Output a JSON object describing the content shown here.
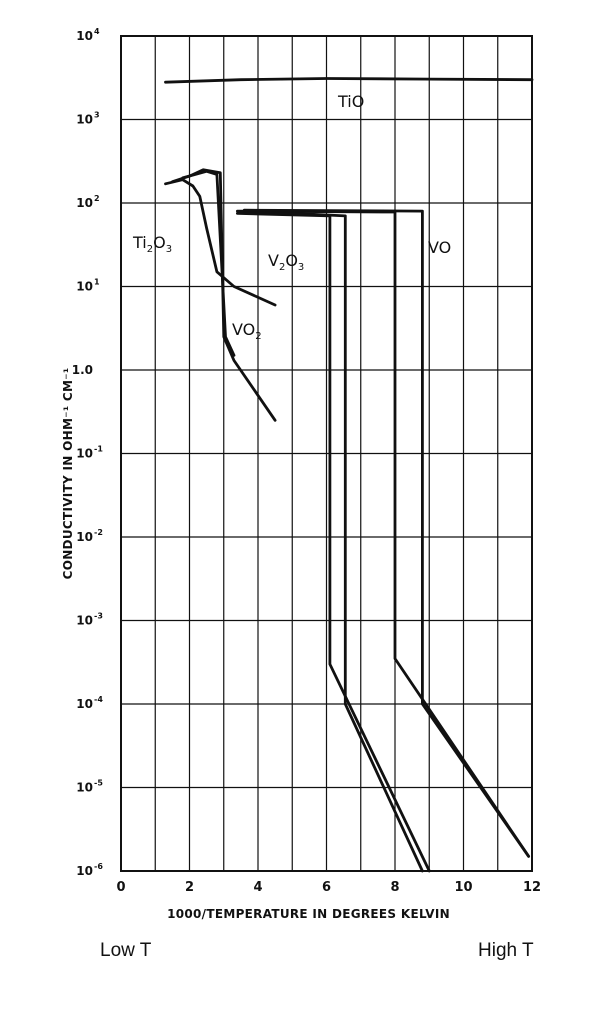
{
  "chart_data": {
    "type": "line",
    "xlabel": "1000/TEMPERATURE IN DEGREES KELVIN",
    "ylabel": "CONDUCTIVITY IN OHM⁻¹ CM⁻¹",
    "y_scale": "log",
    "xlim": [
      0,
      12
    ],
    "ylim": [
      1e-06,
      10000.0
    ],
    "grid": true,
    "x_ticks": [
      "0",
      "2",
      "4",
      "6",
      "8",
      "10",
      "12"
    ],
    "y_ticks": [
      {
        "base": "10",
        "exp": "4"
      },
      {
        "base": "10",
        "exp": "3"
      },
      {
        "base": "10",
        "exp": "2"
      },
      {
        "base": "10",
        "exp": "1"
      },
      {
        "base": "1.0",
        "exp": ""
      },
      {
        "base": "10",
        "exp": "-1"
      },
      {
        "base": "10",
        "exp": "-2"
      },
      {
        "base": "10",
        "exp": "-3"
      },
      {
        "base": "10",
        "exp": "-4"
      },
      {
        "base": "10",
        "exp": "-5"
      },
      {
        "base": "10",
        "exp": "-6"
      }
    ],
    "series": [
      {
        "name": "TiO",
        "label_main": "TiO",
        "label_parts": [
          {
            "t": "TiO",
            "sub": false
          }
        ],
        "points": [
          [
            1.3,
            2800
          ],
          [
            3.5,
            3000
          ],
          [
            6,
            3100
          ],
          [
            9,
            3050
          ],
          [
            12,
            3000
          ]
        ]
      },
      {
        "name": "Ti2O3",
        "label_parts": [
          {
            "t": "Ti",
            "sub": false
          },
          {
            "t": "2",
            "sub": true
          },
          {
            "t": "O",
            "sub": false
          },
          {
            "t": "3",
            "sub": true
          }
        ],
        "points": [
          [
            1.3,
            170
          ],
          [
            1.8,
            190
          ],
          [
            2.1,
            160
          ],
          [
            2.3,
            120
          ],
          [
            2.5,
            50
          ],
          [
            2.8,
            15
          ],
          [
            3.3,
            10
          ],
          [
            4.5,
            6
          ]
        ]
      },
      {
        "name": "VO2",
        "label_parts": [
          {
            "t": "VO",
            "sub": false
          },
          {
            "t": "2",
            "sub": true
          }
        ],
        "points": [
          [
            1.5,
            180
          ],
          [
            2.0,
            210
          ],
          [
            2.4,
            250
          ],
          [
            2.9,
            230
          ],
          [
            3.0,
            2.5
          ],
          [
            3.3,
            1.3
          ],
          [
            4.5,
            0.25
          ]
        ]
      },
      {
        "name": "VO2 (second curve)",
        "label_parts": [],
        "points": [
          [
            1.8,
            200
          ],
          [
            2.5,
            240
          ],
          [
            2.8,
            220
          ],
          [
            3.05,
            2.5
          ],
          [
            3.3,
            1.5
          ]
        ]
      },
      {
        "name": "V2O3",
        "label_parts": [
          {
            "t": "V",
            "sub": false
          },
          {
            "t": "2",
            "sub": true
          },
          {
            "t": "O",
            "sub": false
          },
          {
            "t": "3",
            "sub": true
          }
        ],
        "points": [
          [
            3.4,
            75
          ],
          [
            6.1,
            70
          ],
          [
            6.1,
            0.0003
          ],
          [
            9.0,
            1e-06
          ]
        ]
      },
      {
        "name": "V2O3 (second curve)",
        "label_parts": [],
        "points": [
          [
            3.6,
            80
          ],
          [
            6.55,
            70
          ],
          [
            6.55,
            0.0001
          ],
          [
            8.8,
            1e-06
          ]
        ]
      },
      {
        "name": "VO",
        "label_parts": [
          {
            "t": "VO",
            "sub": false
          }
        ],
        "points": [
          [
            3.4,
            80
          ],
          [
            8.0,
            78
          ],
          [
            8.0,
            0.00035
          ],
          [
            11.9,
            1.5e-06
          ]
        ]
      },
      {
        "name": "VO (second curve)",
        "label_parts": [],
        "points": [
          [
            3.6,
            82
          ],
          [
            8.8,
            80
          ],
          [
            8.8,
            0.0001
          ],
          [
            11.9,
            1.5e-06
          ]
        ]
      }
    ]
  },
  "captions": {
    "left": "Low T",
    "right": "High T"
  }
}
